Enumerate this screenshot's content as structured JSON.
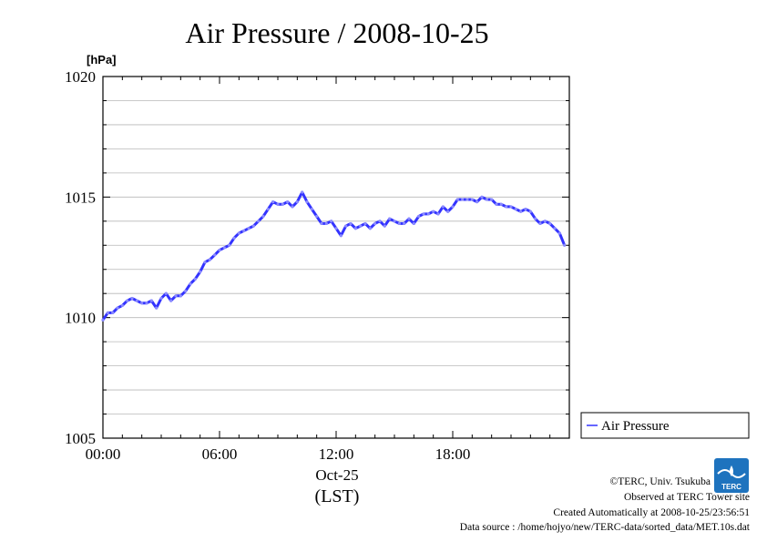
{
  "chart_data": {
    "type": "line",
    "title": "Air Pressure / 2008-10-25",
    "ylabel": "[hPa]",
    "ylim": [
      1005,
      1020
    ],
    "yticks": [
      1005,
      1010,
      1015,
      1020
    ],
    "xlim": [
      0,
      24
    ],
    "xticks": [
      {
        "value": 0,
        "label": "00:00"
      },
      {
        "value": 6,
        "label": "06:00"
      },
      {
        "value": 12,
        "label": "12:00"
      },
      {
        "value": 18,
        "label": "18:00"
      }
    ],
    "date_label": "Oct-25",
    "xlabel": "(LST)",
    "grid": true,
    "legend_position": "right",
    "series": [
      {
        "name": "Air Pressure",
        "color": "#3333ff",
        "x": [
          0,
          0.25,
          0.5,
          0.75,
          1.0,
          1.25,
          1.5,
          1.75,
          2.0,
          2.25,
          2.5,
          2.75,
          3.0,
          3.25,
          3.5,
          3.75,
          4.0,
          4.25,
          4.5,
          4.75,
          5.0,
          5.25,
          5.5,
          5.75,
          6.0,
          6.25,
          6.5,
          6.75,
          7.0,
          7.25,
          7.5,
          7.75,
          8.0,
          8.25,
          8.5,
          8.75,
          9.0,
          9.25,
          9.5,
          9.75,
          10.0,
          10.25,
          10.5,
          10.75,
          11.0,
          11.25,
          11.5,
          11.75,
          12.0,
          12.25,
          12.5,
          12.75,
          13.0,
          13.25,
          13.5,
          13.75,
          14.0,
          14.25,
          14.5,
          14.75,
          15.0,
          15.25,
          15.5,
          15.75,
          16.0,
          16.25,
          16.5,
          16.75,
          17.0,
          17.25,
          17.5,
          17.75,
          18.0,
          18.25,
          18.5,
          18.75,
          19.0,
          19.25,
          19.5,
          19.75,
          20.0,
          20.25,
          20.5,
          20.75,
          21.0,
          21.25,
          21.5,
          21.75,
          22.0,
          22.25,
          22.5,
          22.75,
          23.0,
          23.25,
          23.5,
          23.75
        ],
        "values": [
          1009.9,
          1010.2,
          1010.2,
          1010.4,
          1010.5,
          1010.7,
          1010.8,
          1010.7,
          1010.6,
          1010.6,
          1010.7,
          1010.4,
          1010.8,
          1011.0,
          1010.7,
          1010.9,
          1010.9,
          1011.1,
          1011.4,
          1011.6,
          1011.9,
          1012.3,
          1012.4,
          1012.6,
          1012.8,
          1012.9,
          1013.0,
          1013.3,
          1013.5,
          1013.6,
          1013.7,
          1013.8,
          1014.0,
          1014.2,
          1014.5,
          1014.8,
          1014.7,
          1014.7,
          1014.8,
          1014.6,
          1014.8,
          1015.2,
          1014.8,
          1014.5,
          1014.2,
          1013.9,
          1013.9,
          1014.0,
          1013.7,
          1013.4,
          1013.8,
          1013.9,
          1013.7,
          1013.8,
          1013.9,
          1013.7,
          1013.9,
          1014.0,
          1013.8,
          1014.1,
          1014.0,
          1013.9,
          1013.9,
          1014.1,
          1013.9,
          1014.2,
          1014.3,
          1014.3,
          1014.4,
          1014.3,
          1014.6,
          1014.4,
          1014.6,
          1014.9,
          1014.9,
          1014.9,
          1014.9,
          1014.8,
          1015.0,
          1014.9,
          1014.9,
          1014.7,
          1014.7,
          1014.6,
          1014.6,
          1014.5,
          1014.4,
          1014.5,
          1014.4,
          1014.1,
          1013.9,
          1014.0,
          1013.9,
          1013.7,
          1013.5,
          1013.0
        ]
      }
    ]
  },
  "footer": {
    "copyright": "©TERC, Univ. Tsukuba",
    "observed": "Observed at TERC Tower site",
    "created": "Created Automatically at 2008-10-25/23:56:51",
    "source": "Data source : /home/hojyo/new/TERC-data/sorted_data/MET.10s.dat"
  },
  "logo": {
    "text": "TERC",
    "color": "#1e73be"
  }
}
